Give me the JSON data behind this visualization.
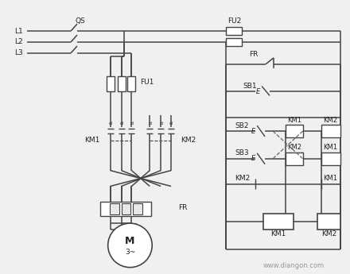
{
  "bg_color": "#f0f0ee",
  "line_color": "#444444",
  "text_color": "#222222",
  "dashed_color": "#666666",
  "watermark": "www.diangon.com",
  "labels": {
    "QS": "QS",
    "FU2": "FU2",
    "FU1": "FU1",
    "FR_top": "FR",
    "FR_bottom": "FR",
    "KM1_left": "KM1",
    "KM2_left": "KM2",
    "SB1": "SB1",
    "SB2": "SB2",
    "SB3": "SB3",
    "KM1_r1": "KM1",
    "KM2_r1": "KM2",
    "KM1_r2": "KM1",
    "KM2_r2": "KM2",
    "KM1_coil": "KM1",
    "KM2_coil": "KM2",
    "L1": "L1",
    "L2": "L2",
    "L3": "L3",
    "M": "M",
    "M_sub": "3~"
  }
}
